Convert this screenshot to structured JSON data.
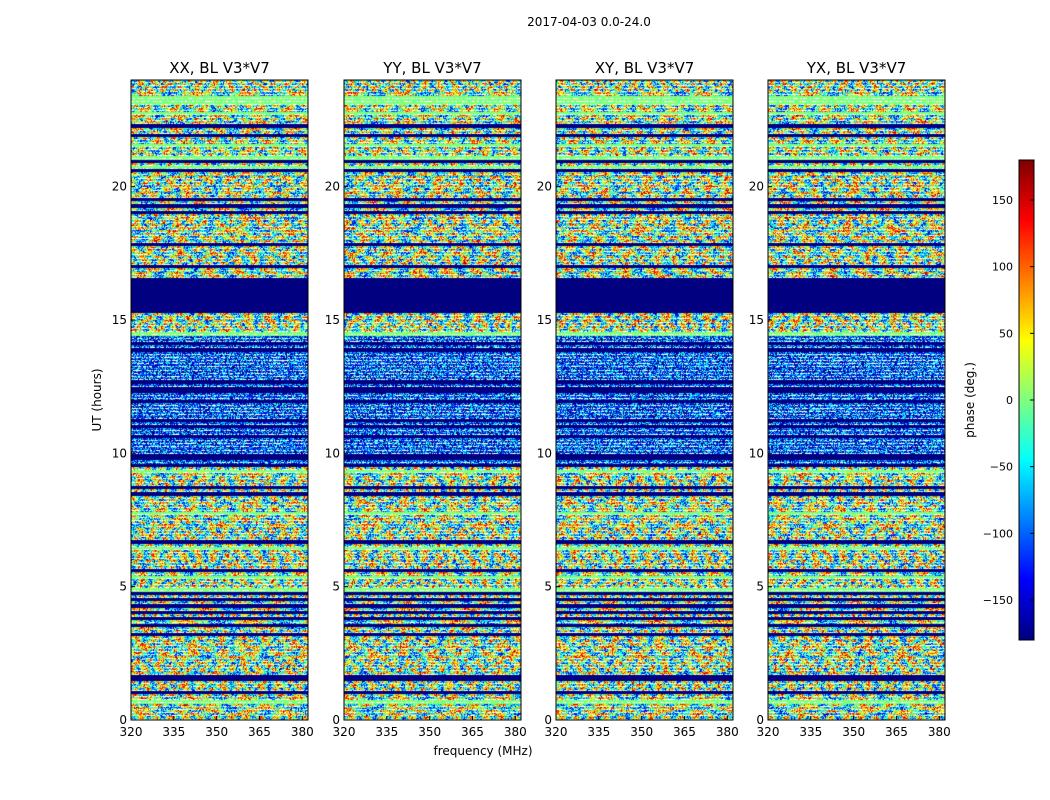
{
  "suptitle": "2017-04-03 0.0-24.0",
  "chart_data": {
    "type": "heatmap",
    "panels": [
      {
        "title": "XX, BL V3*V7"
      },
      {
        "title": "YY, BL V3*V7"
      },
      {
        "title": "XY, BL V3*V7"
      },
      {
        "title": "YX, BL V3*V7"
      }
    ],
    "xlabel": "frequency (MHz)",
    "ylabel": "UT (hours)",
    "xlim": [
      320,
      382
    ],
    "ylim": [
      0,
      24
    ],
    "xticks": [
      320,
      335,
      350,
      365,
      380
    ],
    "yticks": [
      0,
      5,
      10,
      15,
      20
    ],
    "colorbar": {
      "label": "phase (deg.)",
      "colormap": "jet",
      "range": [
        -180,
        180
      ],
      "ticks": [
        -150,
        -100,
        -50,
        0,
        50,
        100,
        150
      ],
      "tick_labels": [
        "−150",
        "−100",
        "−50",
        "0",
        "50",
        "100",
        "150"
      ]
    }
  }
}
